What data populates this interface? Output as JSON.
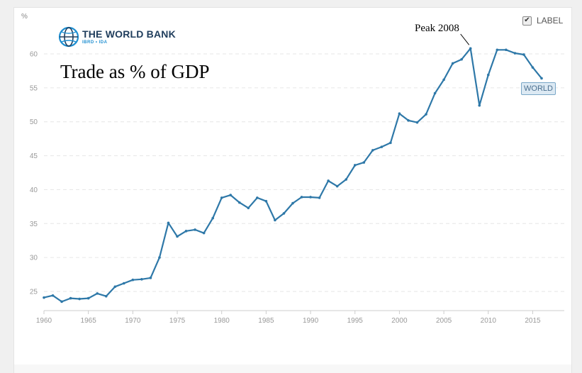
{
  "branding": {
    "name": "THE WORLD BANK",
    "sub": "IBRD • IDA"
  },
  "controls": {
    "label_toggle": "LABEL",
    "label_checked": true,
    "checkmark_icon": "checkmark-icon"
  },
  "colors": {
    "series": "#2e78a8",
    "grid": "#e6e6e6",
    "tick": "#999999"
  },
  "chart_data": {
    "type": "line",
    "title": "Trade as % of GDP",
    "unit_label": "%",
    "xlabel": "",
    "ylabel": "",
    "xlim": [
      1960,
      2017
    ],
    "ylim": [
      22,
      62
    ],
    "x_ticks": [
      1960,
      1965,
      1970,
      1975,
      1980,
      1985,
      1990,
      1995,
      2000,
      2005,
      2010,
      2015
    ],
    "y_ticks": [
      25,
      30,
      35,
      40,
      45,
      50,
      55,
      60
    ],
    "grid": "horizontal dashed",
    "series": [
      {
        "name": "WORLD",
        "x": [
          1960,
          1961,
          1962,
          1963,
          1964,
          1965,
          1966,
          1967,
          1968,
          1969,
          1970,
          1971,
          1972,
          1973,
          1974,
          1975,
          1976,
          1977,
          1978,
          1979,
          1980,
          1981,
          1982,
          1983,
          1984,
          1985,
          1986,
          1987,
          1988,
          1989,
          1990,
          1991,
          1992,
          1993,
          1994,
          1995,
          1996,
          1997,
          1998,
          1999,
          2000,
          2001,
          2002,
          2003,
          2004,
          2005,
          2006,
          2007,
          2008,
          2009,
          2010,
          2011,
          2012,
          2013,
          2014,
          2015,
          2016
        ],
        "values": [
          24.1,
          24.4,
          23.5,
          24.0,
          23.9,
          24.0,
          24.7,
          24.3,
          25.7,
          26.2,
          26.7,
          26.8,
          27.0,
          30.0,
          35.1,
          33.1,
          33.9,
          34.1,
          33.6,
          35.8,
          38.8,
          39.2,
          38.1,
          37.3,
          38.8,
          38.3,
          35.5,
          36.5,
          38.0,
          38.9,
          38.9,
          38.8,
          41.3,
          40.5,
          41.5,
          43.6,
          44.0,
          45.8,
          46.3,
          46.9,
          51.2,
          50.2,
          49.9,
          51.1,
          54.2,
          56.2,
          58.6,
          59.2,
          60.8,
          52.4,
          56.9,
          60.6,
          60.6,
          60.1,
          59.9,
          58.0,
          56.4
        ]
      }
    ],
    "annotations": [
      {
        "text": "Peak 2008",
        "x": 2008,
        "y": 60.8
      }
    ],
    "legend": "right, inline at series end"
  }
}
